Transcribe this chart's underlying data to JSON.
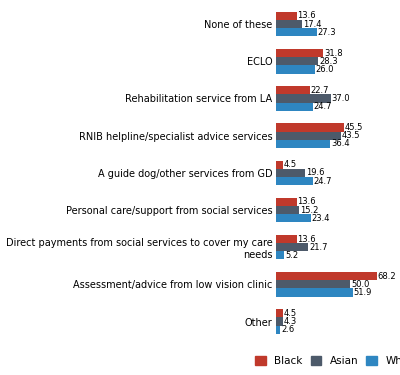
{
  "categories": [
    "None of these",
    "ECLO",
    "Rehabilitation service from LA",
    "RNIB helpline/specialist advice services",
    "A guide dog/other services from GD",
    "Personal care/support from social services",
    "Direct payments from social services to cover my care\nneeds",
    "Assessment/advice from low vision clinic",
    "Other"
  ],
  "black": [
    13.6,
    31.8,
    22.7,
    45.5,
    4.5,
    13.6,
    13.6,
    68.2,
    4.5
  ],
  "asian": [
    17.4,
    28.3,
    37.0,
    43.5,
    19.6,
    15.2,
    21.7,
    50.0,
    4.3
  ],
  "white": [
    27.3,
    26.0,
    24.7,
    36.4,
    24.7,
    23.4,
    5.2,
    51.9,
    2.6
  ],
  "black_color": "#c0392b",
  "asian_color": "#4d5a6a",
  "white_color": "#2e86c1",
  "bar_height": 0.22,
  "xlim": [
    0,
    80
  ],
  "legend_labels": [
    "Black",
    "Asian",
    "White"
  ],
  "value_fontsize": 6.0,
  "label_fontsize": 7.0
}
